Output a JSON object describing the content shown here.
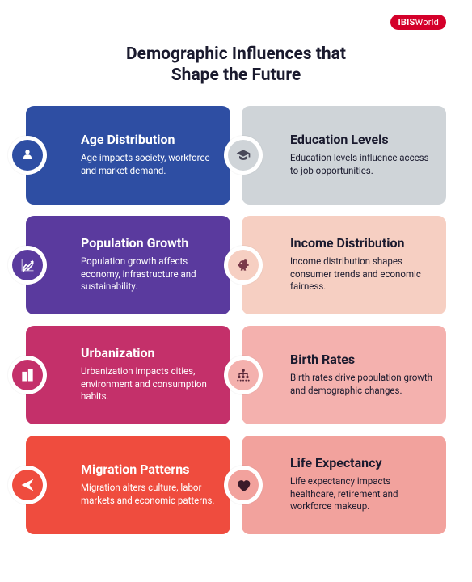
{
  "logo": {
    "bold": "IBIS",
    "light": "World",
    "bg": "#d4002a"
  },
  "title": "Demographic Influences that\nShape the Future",
  "layout": {
    "cols": 2,
    "rows": 4,
    "card_radius": 10
  },
  "cards": [
    {
      "title": "Age Distribution",
      "desc": "Age impacts society, workforce and market demand.",
      "bg": "#2e4ea3",
      "text": "#ffffff",
      "icon": "person-tie",
      "icon_bg": "#2e4ea3",
      "icon_fg": "#ffffff",
      "col": "left"
    },
    {
      "title": "Education Levels",
      "desc": "Education levels influence access to job opportunities.",
      "bg": "#cfd4d8",
      "text": "#1a1a2e",
      "icon": "grad-cap",
      "icon_bg": "#cfd4d8",
      "icon_fg": "#4a4a5a",
      "col": "right"
    },
    {
      "title": "Population Growth",
      "desc": "Population growth affects economy, infrastructure and sustainability.",
      "bg": "#5a3a9e",
      "text": "#ffffff",
      "icon": "chart-up",
      "icon_bg": "#5a3a9e",
      "icon_fg": "#ffffff",
      "col": "left"
    },
    {
      "title": "Income Distribution",
      "desc": "Income distribution shapes consumer trends and economic fairness.",
      "bg": "#f6cfc2",
      "text": "#1a1a2e",
      "icon": "piggy",
      "icon_bg": "#f6cfc2",
      "icon_fg": "#7a3a4a",
      "col": "right"
    },
    {
      "title": "Urbanization",
      "desc": "Urbanization impacts cities, environment and consumption habits.",
      "bg": "#c4306a",
      "text": "#ffffff",
      "icon": "buildings",
      "icon_bg": "#c4306a",
      "icon_fg": "#ffffff",
      "col": "left"
    },
    {
      "title": "Birth Rates",
      "desc": "Birth rates drive population growth and demographic changes.",
      "bg": "#f4b1ae",
      "text": "#1a1a2e",
      "icon": "hierarchy",
      "icon_bg": "#f4b1ae",
      "icon_fg": "#5a2a3a",
      "col": "right"
    },
    {
      "title": "Migration Patterns",
      "desc": "Migration alters culture, labor markets and economic patterns.",
      "bg": "#ef4c3e",
      "text": "#ffffff",
      "icon": "send",
      "icon_bg": "#ef4c3e",
      "icon_fg": "#ffffff",
      "col": "left"
    },
    {
      "title": "Life Expectancy",
      "desc": "Life expectancy impacts healthcare, retirement and workforce makeup.",
      "bg": "#f2a29d",
      "text": "#1a1a2e",
      "icon": "heart",
      "icon_bg": "#f2a29d",
      "icon_fg": "#3a1a2a",
      "col": "right"
    }
  ]
}
